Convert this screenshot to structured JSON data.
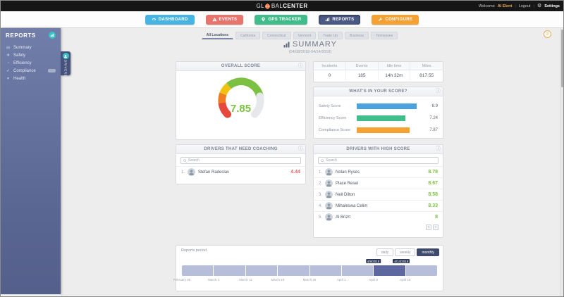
{
  "topbar": {
    "logo_part1": "GL",
    "logo_part2": "BAL",
    "logo_part3": "CENTER",
    "welcome_label": "Welcome",
    "username": "Al Elent",
    "logout_label": "Logout",
    "settings_label": "Settings"
  },
  "nav": {
    "items": [
      {
        "label": "DASHBOARD",
        "icon": "dashboard-icon",
        "color": "#47b5e3",
        "active": false
      },
      {
        "label": "EVENTS",
        "icon": "events-icon",
        "color": "#e8746e",
        "active": false
      },
      {
        "label": "GPS TRACKER",
        "icon": "gps-tracker-icon",
        "color": "#41bd8c",
        "active": false
      },
      {
        "label": "REPORTS",
        "icon": "reports-icon",
        "color": "#4a5a85",
        "active": true
      },
      {
        "label": "CONFIGURE",
        "icon": "configure-icon",
        "color": "#f6a233",
        "active": false
      }
    ]
  },
  "sidebar": {
    "title": "REPORTS",
    "items": [
      {
        "label": "Summary",
        "icon": "summary-icon"
      },
      {
        "label": "Safety",
        "icon": "safety-icon"
      },
      {
        "label": "Efficiency",
        "icon": "efficiency-icon"
      },
      {
        "label": "Compliance",
        "icon": "compliance-icon",
        "badge": true
      },
      {
        "label": "Health",
        "icon": "health-icon"
      }
    ],
    "drivers_tab_label": "DRIVERS"
  },
  "location_tabs": {
    "active_index": 0,
    "items": [
      "All Locations",
      "California",
      "Connecticut",
      "Vermont",
      "Trade Up",
      "Business",
      "Tennessee"
    ]
  },
  "summary_header": {
    "title": "SUMMARY",
    "date_range": "(04/08/2018-04/14/2018)"
  },
  "overall_score": {
    "header": "OVERALL SCORE",
    "value": 7.85,
    "display": "7.85",
    "max": 10,
    "value_color": "#7cc142",
    "arc_colors": [
      "#e5493d",
      "#ef7d22",
      "#f2c212",
      "#7cc142"
    ],
    "remainder_color": "#e6e8ec"
  },
  "stats": {
    "columns": [
      {
        "label": "Incidents",
        "value": "0"
      },
      {
        "label": "Events",
        "value": "185"
      },
      {
        "label": "Idle time",
        "value": "14h 32m"
      },
      {
        "label": "Miles",
        "value": "817.55"
      }
    ]
  },
  "score_breakdown": {
    "header": "WHAT'S IN YOUR SCORE?",
    "max": 10,
    "bars": [
      {
        "label": "Safety Score",
        "value": 8.9,
        "display": "8.9",
        "color": "#4aa3df"
      },
      {
        "label": "Efficiency Score",
        "value": 7.24,
        "display": "7.24",
        "color": "#41bd8c"
      },
      {
        "label": "Compliance Score",
        "value": 7.87,
        "display": "7.87",
        "color": "#f6a233"
      }
    ]
  },
  "coaching": {
    "header": "DRIVERS THAT NEED COACHING",
    "search_placeholder": "Search",
    "score_color": "#e0635f",
    "rows": [
      {
        "rank": "1.",
        "name": "Stefan Radeslav",
        "score": "4.44"
      }
    ]
  },
  "high_score": {
    "header": "DRIVERS WITH HIGH SCORE",
    "search_placeholder": "Search",
    "score_color": "#7cc142",
    "rows": [
      {
        "rank": "1.",
        "name": "Nolan Ryses",
        "score": "8.78"
      },
      {
        "rank": "2.",
        "name": "Place Resel",
        "score": "8.67"
      },
      {
        "rank": "3.",
        "name": "Neil Dilton",
        "score": "8.58"
      },
      {
        "rank": "4.",
        "name": "Mihaleswa Celim",
        "score": "8.33"
      },
      {
        "rank": "5.",
        "name": "Al Brizrt",
        "score": "8"
      }
    ],
    "pagination": {
      "prev": "‹",
      "next": "›"
    }
  },
  "reports_period": {
    "title": "Reports period",
    "buttons": [
      {
        "label": "daily",
        "active": false
      },
      {
        "label": "weekly",
        "active": false
      },
      {
        "label": "monthly",
        "active": true
      }
    ],
    "segments": 8,
    "selected_index": 6,
    "selected_start": "4/8/2018",
    "selected_end": "4/14/2018",
    "axis_labels": [
      "February 25",
      "March 4",
      "March 11",
      "March 18",
      "March 25",
      "April 1",
      "April 8",
      "April 15"
    ]
  }
}
